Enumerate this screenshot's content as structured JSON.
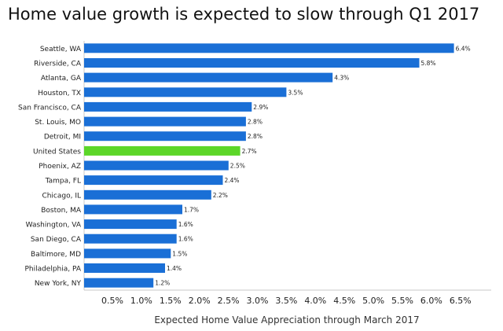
{
  "chart_data": {
    "type": "bar",
    "orientation": "horizontal",
    "title": "Home value growth is expected to slow through Q1 2017",
    "xlabel": "Expected Home Value Appreciation through March 2017",
    "ylabel": "",
    "xlim": [
      0,
      6.5
    ],
    "x_ticks": [
      "0.5%",
      "1.0%",
      "1.5%",
      "2.0%",
      "2.5%",
      "3.0%",
      "3.5%",
      "4.0%",
      "4.5%",
      "5.0%",
      "5.5%",
      "6.0%",
      "6.5%"
    ],
    "categories": [
      "Seattle, WA",
      "Riverside, CA",
      "Atlanta, GA",
      "Houston, TX",
      "San Francisco, CA",
      "St. Louis, MO",
      "Detroit, MI",
      "United States",
      "Phoenix, AZ",
      "Tampa, FL",
      "Chicago, IL",
      "Boston, MA",
      "Washington, VA",
      "San Diego, CA",
      "Baltimore, MD",
      "Philadelphia, PA",
      "New York, NY"
    ],
    "values": [
      6.4,
      5.8,
      4.3,
      3.5,
      2.9,
      2.8,
      2.8,
      2.7,
      2.5,
      2.4,
      2.2,
      1.7,
      1.6,
      1.6,
      1.5,
      1.4,
      1.2
    ],
    "value_labels": [
      "6.4%",
      "5.8%",
      "4.3%",
      "3.5%",
      "2.9%",
      "2.8%",
      "2.8%",
      "2.7%",
      "2.5%",
      "2.4%",
      "2.2%",
      "1.7%",
      "1.6%",
      "1.6%",
      "1.5%",
      "1.4%",
      "1.2%"
    ],
    "highlight_category": "United States",
    "grid": false,
    "legend": "none",
    "colors": {
      "bar": "#1a6fd6",
      "highlight": "#5cd628",
      "axis": "#c8c8c8"
    }
  }
}
